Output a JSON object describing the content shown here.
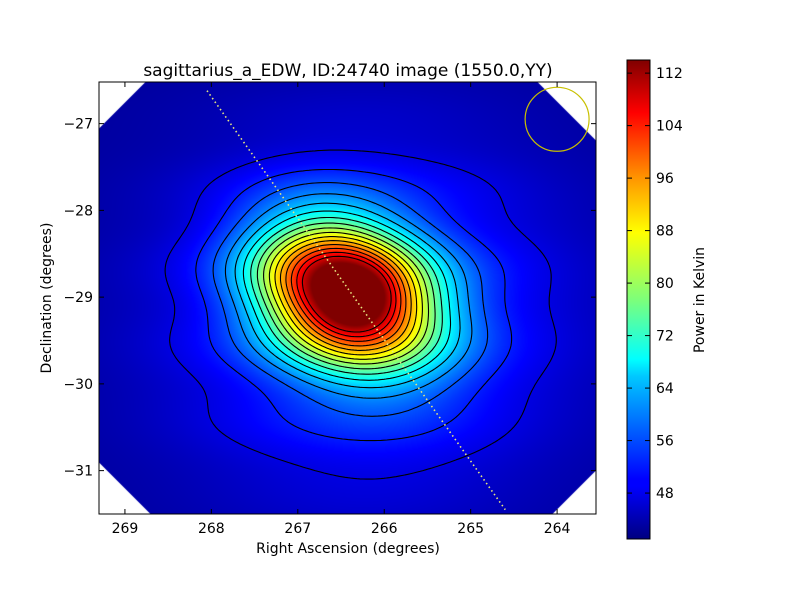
{
  "chart_data": {
    "type": "heatmap",
    "title": "sagittarius_a_EDW, ID:24740 image (1550.0,YY)",
    "xlabel": "Right Ascension (degrees)",
    "ylabel": "Declination (degrees)",
    "xlim": [
      269.3,
      263.55
    ],
    "ylim": [
      -31.5,
      -26.52
    ],
    "x_ticks": [
      269,
      268,
      267,
      266,
      265,
      264
    ],
    "x_tick_labels": [
      "269",
      "268",
      "267",
      "266",
      "265",
      "264"
    ],
    "y_ticks": [
      -27,
      -28,
      -29,
      -30,
      -31
    ],
    "y_tick_labels": [
      "−27",
      "−28",
      "−29",
      "−30",
      "−31"
    ],
    "colorbar": {
      "label": "Power in Kelvin",
      "range": [
        41,
        114
      ],
      "ticks": [
        48,
        56,
        64,
        72,
        80,
        88,
        96,
        104,
        112
      ],
      "tick_labels": [
        "48",
        "56",
        "64",
        "72",
        "80",
        "88",
        "96",
        "104",
        "112"
      ],
      "colormap": "jet"
    },
    "source_peak": {
      "ra": 266.45,
      "dec": -28.95,
      "value": 112
    },
    "contour_levels": [
      48,
      52,
      56,
      60,
      64,
      68,
      72,
      76,
      80,
      84,
      88,
      92,
      96,
      100,
      104,
      108
    ],
    "galactic_plane": [
      [
        268.05,
        -26.62
      ],
      [
        264.6,
        -31.45
      ]
    ],
    "beam": {
      "ra": 264.0,
      "dec": -26.95,
      "radius_deg": 0.37
    },
    "grid": false,
    "colors": {
      "contour": "#000000",
      "beam": "#c8c000",
      "galactic_plane": "#e8e880"
    }
  }
}
